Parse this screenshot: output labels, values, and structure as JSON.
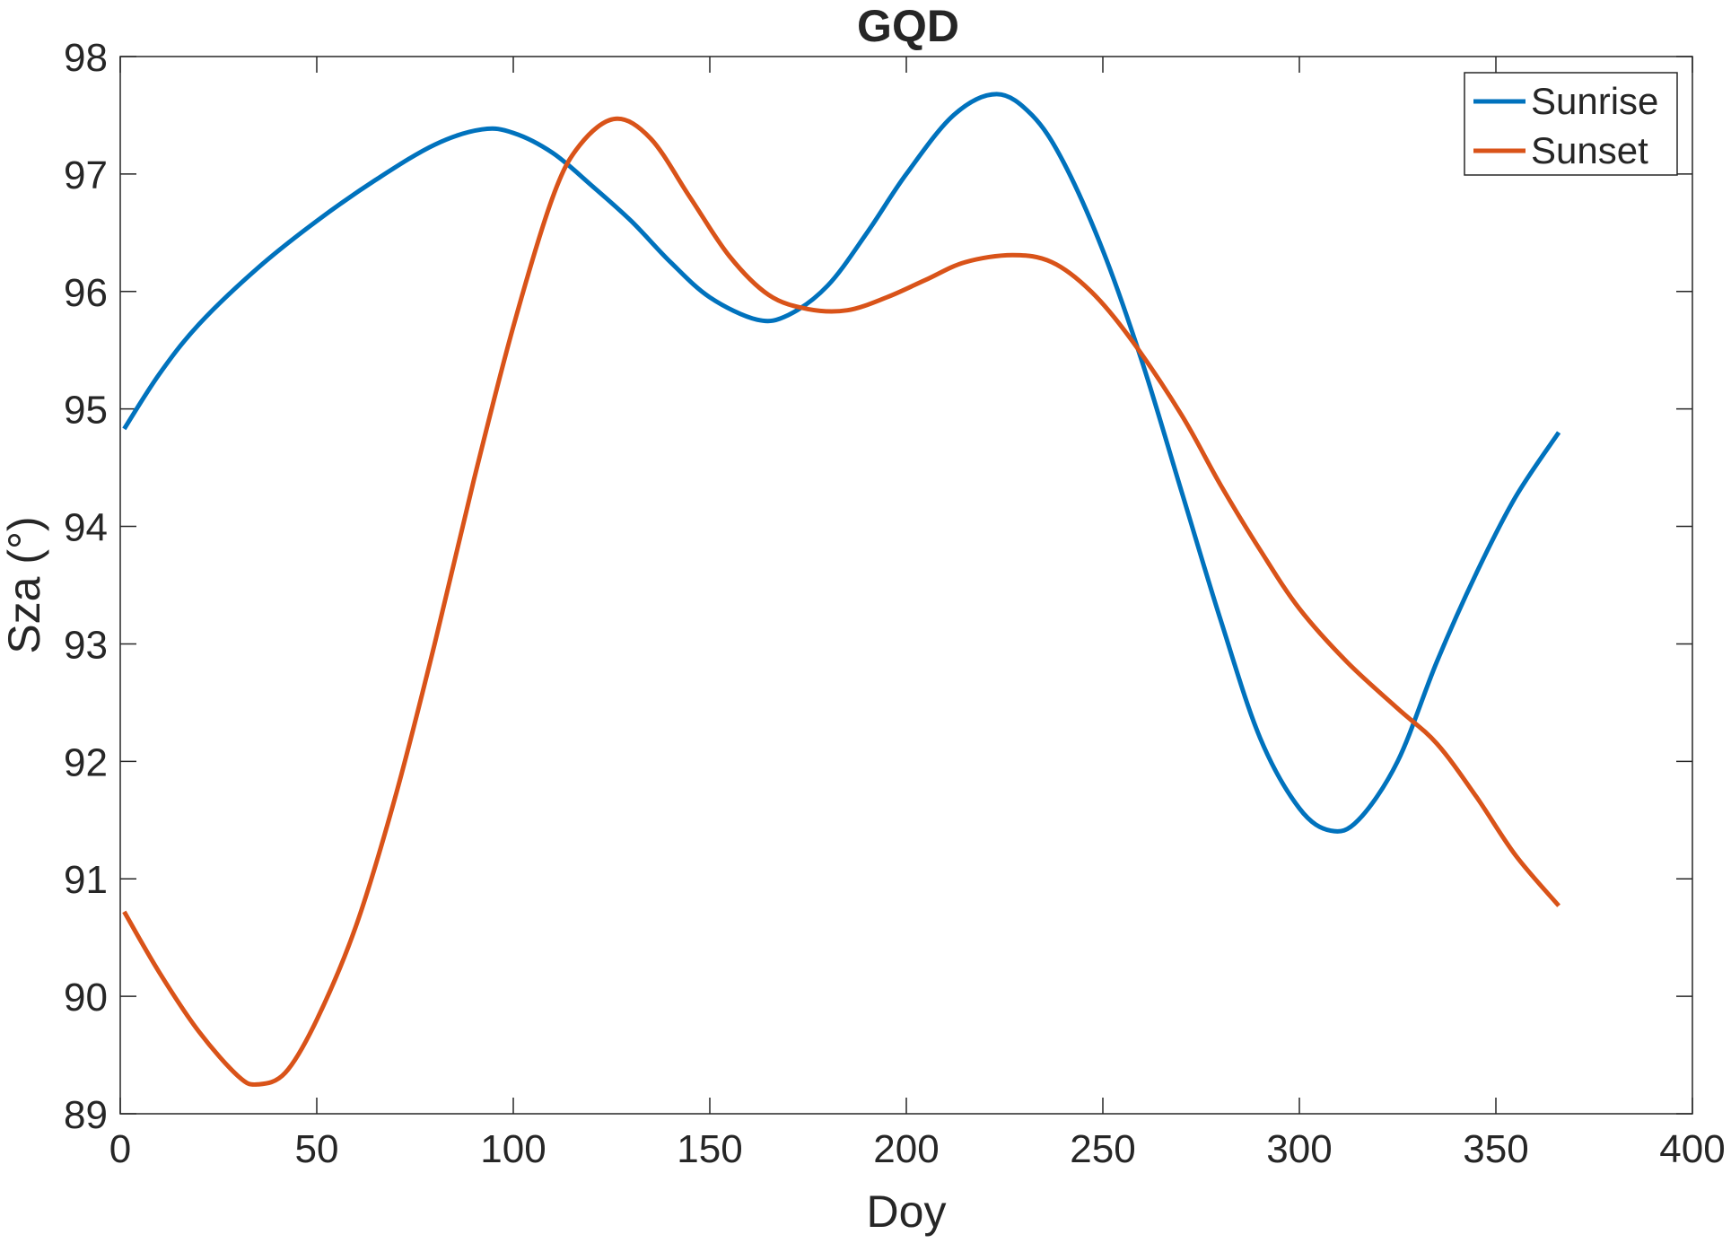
{
  "chart_data": {
    "type": "line",
    "title": "GQD",
    "xlabel": "Doy",
    "ylabel": "Sza (°)",
    "xlim": [
      0,
      400
    ],
    "ylim": [
      89,
      98
    ],
    "xticks": [
      0,
      50,
      100,
      150,
      200,
      250,
      300,
      350,
      400
    ],
    "yticks": [
      89,
      90,
      91,
      92,
      93,
      94,
      95,
      96,
      97,
      98
    ],
    "grid": false,
    "legend_position": "top-right",
    "series": [
      {
        "name": "Sunrise",
        "color": "#0072BD",
        "points": [
          [
            1,
            94.83
          ],
          [
            10,
            95.3
          ],
          [
            20,
            95.72
          ],
          [
            35,
            96.2
          ],
          [
            50,
            96.6
          ],
          [
            65,
            96.95
          ],
          [
            80,
            97.25
          ],
          [
            92,
            97.38
          ],
          [
            100,
            97.35
          ],
          [
            110,
            97.18
          ],
          [
            120,
            96.9
          ],
          [
            130,
            96.6
          ],
          [
            140,
            96.25
          ],
          [
            150,
            95.95
          ],
          [
            162,
            95.76
          ],
          [
            170,
            95.8
          ],
          [
            180,
            96.05
          ],
          [
            190,
            96.5
          ],
          [
            200,
            97.0
          ],
          [
            212,
            97.5
          ],
          [
            223,
            97.68
          ],
          [
            232,
            97.5
          ],
          [
            240,
            97.1
          ],
          [
            250,
            96.35
          ],
          [
            260,
            95.4
          ],
          [
            270,
            94.3
          ],
          [
            280,
            93.2
          ],
          [
            290,
            92.2
          ],
          [
            300,
            91.6
          ],
          [
            308,
            91.41
          ],
          [
            315,
            91.5
          ],
          [
            325,
            92.0
          ],
          [
            335,
            92.85
          ],
          [
            345,
            93.6
          ],
          [
            355,
            94.25
          ],
          [
            366,
            94.8
          ]
        ]
      },
      {
        "name": "Sunset",
        "color": "#D95319",
        "points": [
          [
            1,
            90.72
          ],
          [
            10,
            90.2
          ],
          [
            20,
            89.7
          ],
          [
            30,
            89.32
          ],
          [
            35,
            89.25
          ],
          [
            42,
            89.35
          ],
          [
            50,
            89.8
          ],
          [
            60,
            90.6
          ],
          [
            70,
            91.7
          ],
          [
            80,
            93.0
          ],
          [
            90,
            94.4
          ],
          [
            100,
            95.7
          ],
          [
            110,
            96.8
          ],
          [
            117,
            97.25
          ],
          [
            126,
            97.47
          ],
          [
            135,
            97.3
          ],
          [
            145,
            96.8
          ],
          [
            155,
            96.3
          ],
          [
            165,
            95.97
          ],
          [
            175,
            95.85
          ],
          [
            185,
            95.84
          ],
          [
            195,
            95.95
          ],
          [
            205,
            96.1
          ],
          [
            215,
            96.25
          ],
          [
            227,
            96.31
          ],
          [
            237,
            96.25
          ],
          [
            247,
            96.0
          ],
          [
            257,
            95.6
          ],
          [
            270,
            94.95
          ],
          [
            280,
            94.35
          ],
          [
            290,
            93.8
          ],
          [
            300,
            93.3
          ],
          [
            312,
            92.85
          ],
          [
            325,
            92.45
          ],
          [
            335,
            92.15
          ],
          [
            345,
            91.7
          ],
          [
            355,
            91.2
          ],
          [
            366,
            90.77
          ]
        ]
      }
    ]
  }
}
